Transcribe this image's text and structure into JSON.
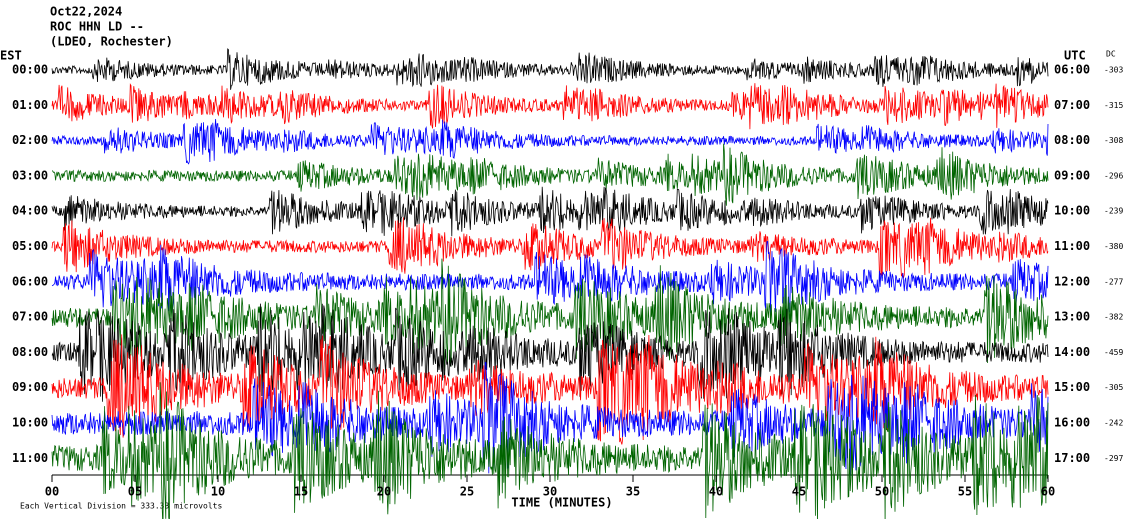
{
  "header": {
    "date": "Oct22,2024",
    "station": "ROC HHN LD --",
    "network": "(LDEO, Rochester)"
  },
  "left_axis": {
    "title": "EST",
    "labels": [
      "00:00",
      "01:00",
      "02:00",
      "03:00",
      "04:00",
      "05:00",
      "06:00",
      "07:00",
      "08:00",
      "09:00",
      "10:00",
      "11:00"
    ]
  },
  "right_axis": {
    "title": "UTC",
    "labels": [
      "06:00",
      "07:00",
      "08:00",
      "09:00",
      "10:00",
      "11:00",
      "12:00",
      "13:00",
      "14:00",
      "15:00",
      "16:00",
      "17:00"
    ]
  },
  "dc": {
    "title": "DC",
    "values": [
      "-303",
      "-315",
      "-308",
      "-296",
      "-239",
      "-380",
      "-277",
      "-382",
      "-459",
      "-305",
      "-242",
      "-297"
    ]
  },
  "x_axis": {
    "title": "TIME (MINUTES)",
    "ticks": [
      "00",
      "05",
      "10",
      "15",
      "20",
      "25",
      "30",
      "35",
      "40",
      "45",
      "50",
      "55",
      "60"
    ]
  },
  "footnote": "Each Vertical Division =  333.33 microvolts"
}
